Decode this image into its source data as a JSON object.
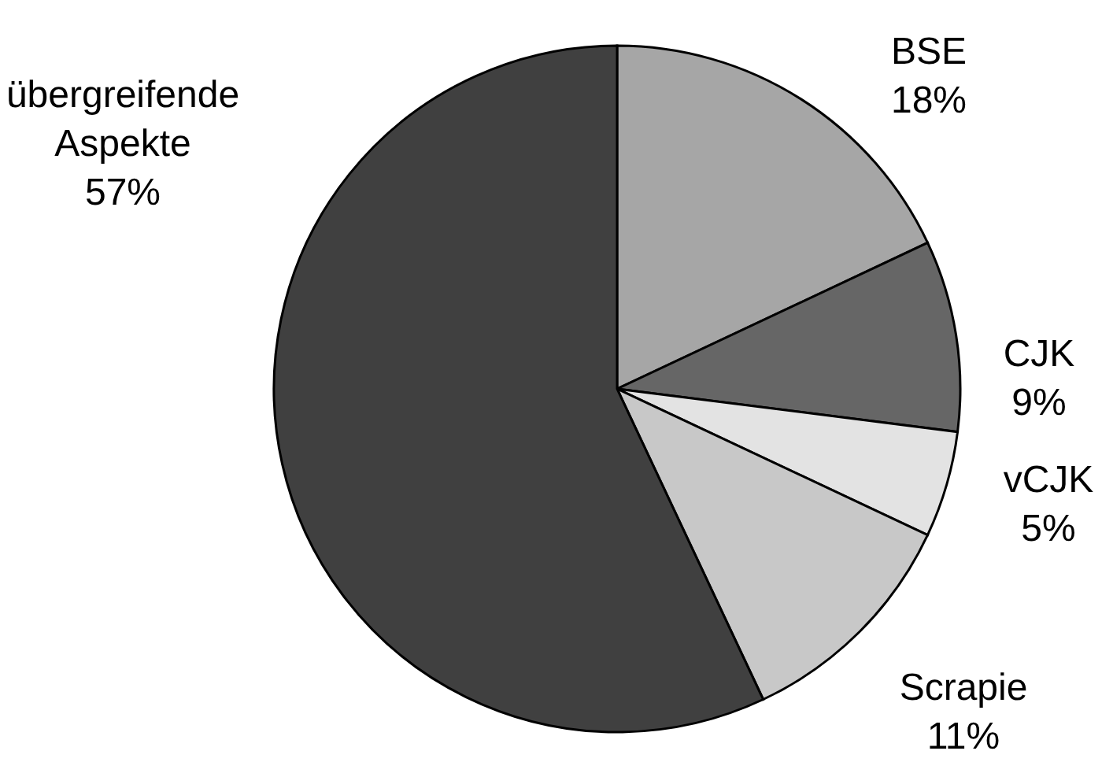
{
  "chart_data": {
    "type": "pie",
    "categories": [
      "BSE",
      "CJK",
      "vCJK",
      "Scrapie",
      "übergreifende Aspekte"
    ],
    "values": [
      18,
      9,
      5,
      11,
      57
    ],
    "value_labels": [
      "18%",
      "9%",
      "5%",
      "11%",
      "57%"
    ],
    "colors": [
      "#a6a6a6",
      "#666666",
      "#e3e3e3",
      "#c8c8c8",
      "#404040"
    ],
    "legend": false
  }
}
